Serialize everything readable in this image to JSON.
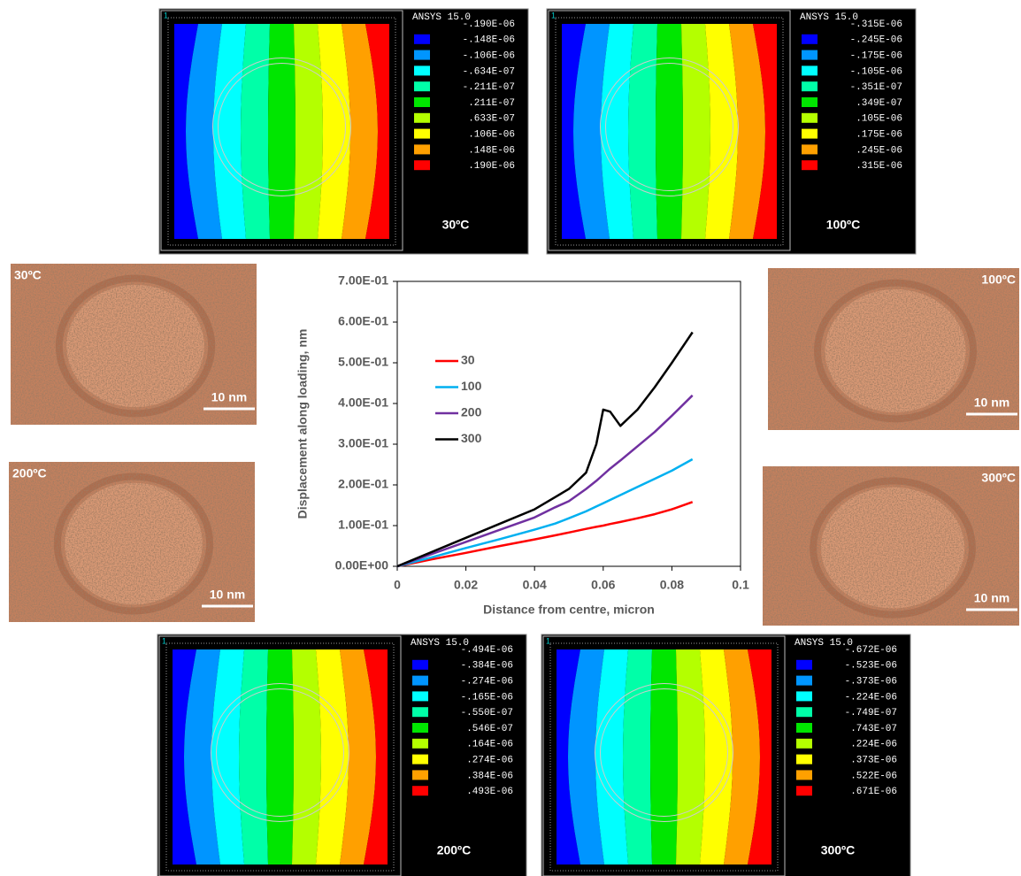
{
  "ansys_panels": [
    {
      "corner": "1",
      "title": "ANSYS 15.0",
      "legend": [
        "-.190E-06",
        "-.148E-06",
        "-.106E-06",
        "-.634E-07",
        "-.211E-07",
        ".211E-07",
        ".633E-07",
        ".106E-06",
        ".148E-06",
        ".190E-06"
      ],
      "label": "30ºC"
    },
    {
      "corner": "1",
      "title": "ANSYS 15.0",
      "legend": [
        "-.315E-06",
        "-.245E-06",
        "-.175E-06",
        "-.105E-06",
        "-.351E-07",
        ".349E-07",
        ".105E-06",
        ".175E-06",
        ".245E-06",
        ".315E-06"
      ],
      "label": "100ºC"
    },
    {
      "corner": "1",
      "title": "ANSYS 15.0",
      "legend": [
        "-.494E-06",
        "-.384E-06",
        "-.274E-06",
        "-.165E-06",
        "-.550E-07",
        ".546E-07",
        ".164E-06",
        ".274E-06",
        ".384E-06",
        ".493E-06"
      ],
      "label": "200ºC"
    },
    {
      "corner": "1",
      "title": "ANSYS 15.0",
      "legend": [
        "-.672E-06",
        "-.523E-06",
        "-.373E-06",
        "-.224E-06",
        "-.749E-07",
        ".743E-07",
        ".224E-06",
        ".373E-06",
        ".522E-06",
        ".671E-06"
      ],
      "label": "300ºC"
    }
  ],
  "micrographs": [
    {
      "label": "30ºC",
      "scale": "10 nm"
    },
    {
      "label": "100ºC",
      "scale": "10 nm"
    },
    {
      "label": "200ºC",
      "scale": "10 nm"
    },
    {
      "label": "300ºC",
      "scale": "10 nm"
    }
  ],
  "chart_data": {
    "type": "line",
    "x_label": "Distance from centre, micron",
    "y_label": "Displacement along loading, nm",
    "x": [
      0,
      0.01,
      0.02,
      0.03,
      0.04,
      0.046,
      0.05,
      0.055,
      0.058,
      0.06,
      0.062,
      0.065,
      0.07,
      0.075,
      0.08,
      0.086
    ],
    "series": [
      {
        "name": "30",
        "color": "#ff0000",
        "values": [
          0,
          0.017,
          0.033,
          0.05,
          0.066,
          0.076,
          0.083,
          0.092,
          0.097,
          0.1,
          0.104,
          0.109,
          0.118,
          0.128,
          0.14,
          0.158
        ]
      },
      {
        "name": "100",
        "color": "#00b0f0",
        "values": [
          0,
          0.022,
          0.045,
          0.067,
          0.09,
          0.105,
          0.118,
          0.135,
          0.147,
          0.155,
          0.163,
          0.175,
          0.195,
          0.215,
          0.235,
          0.263
        ]
      },
      {
        "name": "200",
        "color": "#7030a0",
        "values": [
          0,
          0.03,
          0.06,
          0.09,
          0.12,
          0.145,
          0.16,
          0.19,
          0.21,
          0.225,
          0.24,
          0.26,
          0.295,
          0.33,
          0.37,
          0.42
        ]
      },
      {
        "name": "300",
        "color": "#000000",
        "values": [
          0,
          0.035,
          0.07,
          0.105,
          0.14,
          0.17,
          0.19,
          0.23,
          0.3,
          0.385,
          0.38,
          0.345,
          0.385,
          0.44,
          0.5,
          0.575
        ]
      }
    ],
    "xlim": [
      0,
      0.1
    ],
    "xticks": [
      0,
      0.02,
      0.04,
      0.06,
      0.08,
      0.1
    ],
    "ylim": [
      0,
      0.7
    ],
    "yticks": [
      {
        "value": 0,
        "label": "0.00E+00"
      },
      {
        "value": 0.1,
        "label": "1.00E-01"
      },
      {
        "value": 0.2,
        "label": "2.00E-01"
      },
      {
        "value": 0.3,
        "label": "3.00E-01"
      },
      {
        "value": 0.4,
        "label": "4.00E-01"
      },
      {
        "value": 0.5,
        "label": "5.00E-01"
      },
      {
        "value": 0.6,
        "label": "6.00E-01"
      },
      {
        "value": 0.7,
        "label": "7.00E-01"
      }
    ],
    "grid": false,
    "legend": "left"
  }
}
